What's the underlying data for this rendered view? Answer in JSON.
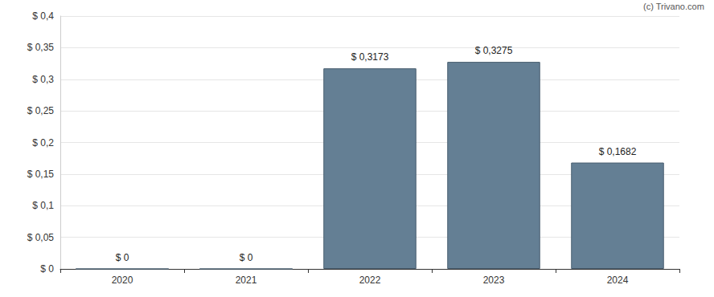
{
  "chart_data": {
    "type": "bar",
    "annotations": [
      "(c) Trivano.com"
    ],
    "categories": [
      "2020",
      "2021",
      "2022",
      "2023",
      "2024"
    ],
    "values": [
      0,
      0,
      0.3173,
      0.3275,
      0.1682
    ],
    "value_labels": [
      "$ 0",
      "$ 0",
      "$ 0,3173",
      "$ 0,3275",
      "$ 0,1682"
    ],
    "color": "#647f94",
    "ylim": [
      0,
      0.4
    ],
    "yticks": [
      {
        "value": 0,
        "label": "$ 0"
      },
      {
        "value": 0.05,
        "label": "$ 0,05"
      },
      {
        "value": 0.1,
        "label": "$ 0,1"
      },
      {
        "value": 0.15,
        "label": "$ 0,15"
      },
      {
        "value": 0.2,
        "label": "$ 0,2"
      },
      {
        "value": 0.25,
        "label": "$ 0,25"
      },
      {
        "value": 0.3,
        "label": "$ 0,3"
      },
      {
        "value": 0.35,
        "label": "$ 0,35"
      },
      {
        "value": 0.4,
        "label": "$ 0,4"
      }
    ],
    "grid": true,
    "data_labels": true
  }
}
